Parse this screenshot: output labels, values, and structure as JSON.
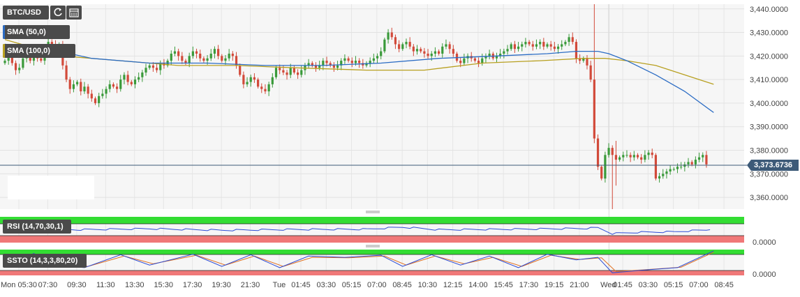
{
  "toolbar": {
    "symbol": "BTC/USD",
    "refresh_icon": "refresh-icon",
    "calendar_icon": "calendar-icon"
  },
  "indicators": {
    "sma50": {
      "label": "SMA (50,0)",
      "color": "#2b6cc4"
    },
    "sma100": {
      "label": "SMA (100,0)",
      "color": "#b8a020"
    },
    "rsi": {
      "label": "RSI (14,70,30,1)",
      "color": "#2b4bd6"
    },
    "ssto": {
      "label": "SSTO (14,3,3,80,20)",
      "k_color": "#2b4bd6",
      "d_color": "#e07020"
    }
  },
  "colors": {
    "up": "#3a9a3a",
    "down": "#d24a3a",
    "overbought": "#33dd33",
    "oversold": "#f07878"
  },
  "current_price": "3,373.6736",
  "chart_data": {
    "type": "candlestick",
    "title": "",
    "ylim": [
      3355,
      3442
    ],
    "y_ticks": [
      "3,440.0000",
      "3,430.0000",
      "3,420.0000",
      "3,410.0000",
      "3,400.0000",
      "3,390.0000",
      "3,380.0000",
      "3,370.0000",
      "3,360.0000"
    ],
    "y_tick_values": [
      3440,
      3430,
      3420,
      3410,
      3400,
      3390,
      3380,
      3370,
      3360
    ],
    "x_ticks": [
      "Mon 05:30",
      "07:30",
      "09:30",
      "11:30",
      "13:30",
      "15:30",
      "17:30",
      "19:30",
      "21:30",
      "Tue",
      "01:45",
      "03:30",
      "05:15",
      "07:00",
      "08:45",
      "10:30",
      "12:15",
      "14:00",
      "15:45",
      "17:30",
      "19:15",
      "21:00",
      "Wed",
      "01:45",
      "03:30",
      "05:15",
      "07:00",
      "08:45"
    ],
    "x_tick_index": [
      0,
      8,
      16,
      24,
      32,
      40,
      48,
      56,
      64,
      72,
      78,
      85,
      92,
      99,
      106,
      113,
      120,
      127,
      134,
      141,
      148,
      155,
      163,
      167,
      174,
      181,
      188,
      195
    ],
    "close_path": [
      3418,
      3420,
      3417,
      3414,
      3415,
      3419,
      3422,
      3418,
      3421,
      3419,
      3418,
      3423,
      3426,
      3425,
      3422,
      3425,
      3416,
      3410,
      3406,
      3408,
      3409,
      3405,
      3407,
      3404,
      3402,
      3400,
      3403,
      3404,
      3406,
      3408,
      3407,
      3406,
      3410,
      3412,
      3409,
      3408,
      3410,
      3411,
      3413,
      3415,
      3416,
      3415,
      3414,
      3417,
      3416,
      3418,
      3421,
      3422,
      3420,
      3418,
      3417,
      3420,
      3422,
      3421,
      3419,
      3418,
      3419,
      3421,
      3423,
      3420,
      3418,
      3419,
      3421,
      3420,
      3416,
      3412,
      3408,
      3409,
      3411,
      3410,
      3407,
      3406,
      3405,
      3408,
      3411,
      3415,
      3414,
      3413,
      3412,
      3415,
      3413,
      3412,
      3414,
      3416,
      3417,
      3416,
      3415,
      3416,
      3418,
      3417,
      3416,
      3415,
      3416,
      3418,
      3419,
      3418,
      3417,
      3418,
      3417,
      3416,
      3417,
      3418,
      3419,
      3420,
      3422,
      3427,
      3430,
      3428,
      3425,
      3423,
      3425,
      3426,
      3424,
      3422,
      3423,
      3422,
      3421,
      3420,
      3421,
      3422,
      3421,
      3424,
      3425,
      3423,
      3421,
      3418,
      3417,
      3419,
      3420,
      3419,
      3418,
      3417,
      3419,
      3420,
      3421,
      3419,
      3420,
      3421,
      3422,
      3423,
      3425,
      3423,
      3424,
      3425,
      3426,
      3425,
      3424,
      3425,
      3426,
      3424,
      3425,
      3424,
      3423,
      3424,
      3425,
      3426,
      3428,
      3426,
      3419,
      3418,
      3419,
      3416,
      3410,
      3385,
      3373,
      3368,
      3378,
      3381,
      3378,
      3376,
      3377,
      3378,
      3378,
      3377,
      3378,
      3377,
      3376,
      3378,
      3379,
      3378,
      3368,
      3369,
      3370,
      3371,
      3372,
      3372,
      3373,
      3373,
      3374,
      3375,
      3374,
      3376,
      3377,
      3378,
      3374
    ],
    "sma50": [
      [
        0,
        3425
      ],
      [
        12,
        3423
      ],
      [
        24,
        3419
      ],
      [
        40,
        3417
      ],
      [
        56,
        3417
      ],
      [
        72,
        3416
      ],
      [
        88,
        3416
      ],
      [
        104,
        3417
      ],
      [
        120,
        3419
      ],
      [
        136,
        3420
      ],
      [
        150,
        3421
      ],
      [
        158,
        3422
      ],
      [
        164,
        3422
      ],
      [
        167,
        3421
      ],
      [
        172,
        3418
      ],
      [
        180,
        3412
      ],
      [
        188,
        3405
      ],
      [
        196,
        3396
      ]
    ],
    "sma100": [
      [
        0,
        3427
      ],
      [
        16,
        3420
      ],
      [
        32,
        3418
      ],
      [
        48,
        3416
      ],
      [
        64,
        3416
      ],
      [
        80,
        3415
      ],
      [
        100,
        3414
      ],
      [
        116,
        3414
      ],
      [
        132,
        3417
      ],
      [
        148,
        3418
      ],
      [
        160,
        3419
      ],
      [
        166,
        3419
      ],
      [
        172,
        3418
      ],
      [
        180,
        3416
      ],
      [
        188,
        3412
      ],
      [
        196,
        3408
      ]
    ],
    "rsi": {
      "label": "RSI (14,70,30,1)",
      "overbought": 70,
      "oversold": 30,
      "ylim": [
        0,
        100
      ],
      "values_path": [
        [
          0,
          55
        ],
        [
          20,
          50
        ],
        [
          40,
          54
        ],
        [
          60,
          48
        ],
        [
          80,
          51
        ],
        [
          100,
          52
        ],
        [
          110,
          60
        ],
        [
          120,
          50
        ],
        [
          140,
          52
        ],
        [
          160,
          55
        ],
        [
          164,
          58
        ],
        [
          168,
          35
        ],
        [
          175,
          40
        ],
        [
          185,
          42
        ],
        [
          195,
          50
        ]
      ],
      "tick_label": "0.0000"
    },
    "ssto": {
      "label": "SSTO (14,3,3,80,20)",
      "overbought": 80,
      "oversold": 20,
      "ylim": [
        0,
        100
      ],
      "k_path": [
        [
          0,
          35
        ],
        [
          8,
          85
        ],
        [
          14,
          40
        ],
        [
          22,
          30
        ],
        [
          32,
          80
        ],
        [
          40,
          40
        ],
        [
          52,
          82
        ],
        [
          60,
          35
        ],
        [
          68,
          80
        ],
        [
          76,
          30
        ],
        [
          84,
          75
        ],
        [
          94,
          70
        ],
        [
          104,
          78
        ],
        [
          110,
          35
        ],
        [
          118,
          80
        ],
        [
          126,
          40
        ],
        [
          134,
          75
        ],
        [
          142,
          30
        ],
        [
          150,
          82
        ],
        [
          158,
          60
        ],
        [
          164,
          70
        ],
        [
          168,
          10
        ],
        [
          176,
          20
        ],
        [
          186,
          30
        ],
        [
          196,
          95
        ]
      ],
      "d_path": [
        [
          0,
          40
        ],
        [
          9,
          80
        ],
        [
          15,
          45
        ],
        [
          23,
          35
        ],
        [
          33,
          75
        ],
        [
          41,
          45
        ],
        [
          53,
          78
        ],
        [
          61,
          40
        ],
        [
          69,
          75
        ],
        [
          77,
          35
        ],
        [
          85,
          70
        ],
        [
          95,
          68
        ],
        [
          105,
          75
        ],
        [
          111,
          40
        ],
        [
          119,
          75
        ],
        [
          127,
          45
        ],
        [
          135,
          70
        ],
        [
          143,
          35
        ],
        [
          151,
          78
        ],
        [
          159,
          62
        ],
        [
          165,
          68
        ],
        [
          169,
          15
        ],
        [
          177,
          22
        ],
        [
          187,
          32
        ],
        [
          196,
          90
        ]
      ],
      "tick_label": "0.0000"
    }
  }
}
